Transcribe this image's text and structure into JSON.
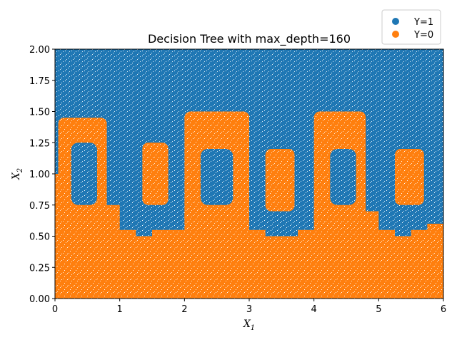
{
  "chart_data": {
    "type": "scatter",
    "title": "Decision Tree with max_depth=160",
    "xlabel": "X",
    "xlabel_sub": "1",
    "ylabel": "X",
    "ylabel_sub": "2",
    "xlim": [
      0,
      6
    ],
    "ylim": [
      0,
      2
    ],
    "xticks": [
      "0",
      "1",
      "2",
      "3",
      "4",
      "5",
      "6"
    ],
    "yticks": [
      "0.00",
      "0.25",
      "0.50",
      "0.75",
      "1.00",
      "1.25",
      "1.50",
      "1.75",
      "2.00"
    ],
    "grid": false,
    "legend_position": "top-right",
    "series": [
      {
        "name": "Y=1",
        "color": "#1f77b4"
      },
      {
        "name": "Y=0",
        "color": "#ff7f0e"
      }
    ],
    "regions_y0": [
      {
        "x": [
          0.05,
          0.8
        ],
        "y": [
          0.55,
          1.45
        ]
      },
      {
        "x": [
          1.35,
          1.75
        ],
        "y": [
          0.75,
          1.25
        ]
      },
      {
        "x": [
          2.0,
          3.0
        ],
        "y": [
          0.6,
          1.5
        ]
      },
      {
        "x": [
          3.25,
          3.7
        ],
        "y": [
          0.7,
          1.2
        ]
      },
      {
        "x": [
          4.0,
          4.8
        ],
        "y": [
          0.6,
          1.5
        ]
      },
      {
        "x": [
          5.25,
          5.7
        ],
        "y": [
          0.75,
          1.2
        ]
      }
    ],
    "regions_y1_inside": [
      {
        "x": [
          0.25,
          0.65
        ],
        "y": [
          0.75,
          1.25
        ]
      },
      {
        "x": [
          2.25,
          2.75
        ],
        "y": [
          0.75,
          1.2
        ]
      },
      {
        "x": [
          4.25,
          4.65
        ],
        "y": [
          0.75,
          1.2
        ]
      }
    ],
    "boundary": {
      "x": [
        0.0,
        0.25,
        0.5,
        0.75,
        1.0,
        1.25,
        1.5,
        1.75,
        2.0,
        2.25,
        2.5,
        2.75,
        3.0,
        3.25,
        3.5,
        3.75,
        4.0,
        4.25,
        4.5,
        4.75,
        5.0,
        5.25,
        5.5,
        5.75,
        6.0
      ],
      "y": [
        1.0,
        0.8,
        0.7,
        0.75,
        0.55,
        0.5,
        0.55,
        0.55,
        0.7,
        0.75,
        0.75,
        0.7,
        0.55,
        0.5,
        0.5,
        0.55,
        0.7,
        0.75,
        0.75,
        0.7,
        0.55,
        0.5,
        0.55,
        0.6,
        0.7
      ]
    }
  }
}
